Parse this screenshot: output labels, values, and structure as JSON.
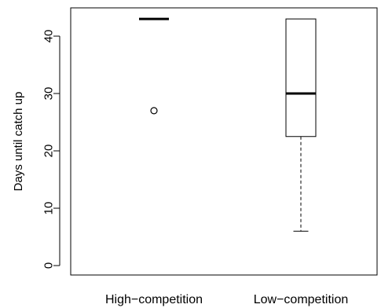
{
  "chart_data": {
    "type": "box",
    "title": "",
    "ylabel": "Days until catch up",
    "xlabel": "",
    "ylim": [
      -2,
      45
    ],
    "yticks": [
      0,
      10,
      20,
      30,
      40
    ],
    "categories": [
      "High−competition",
      "Low−competition"
    ],
    "boxes": [
      {
        "category": "High−competition",
        "min": 43,
        "q1": 43,
        "median": 43,
        "q3": 43,
        "max": 43,
        "outliers": [
          27
        ]
      },
      {
        "category": "Low−competition",
        "min": 6,
        "q1": 22.5,
        "median": 30,
        "q3": 43,
        "max": 43,
        "outliers": []
      }
    ],
    "grid": false,
    "legend": "none"
  }
}
